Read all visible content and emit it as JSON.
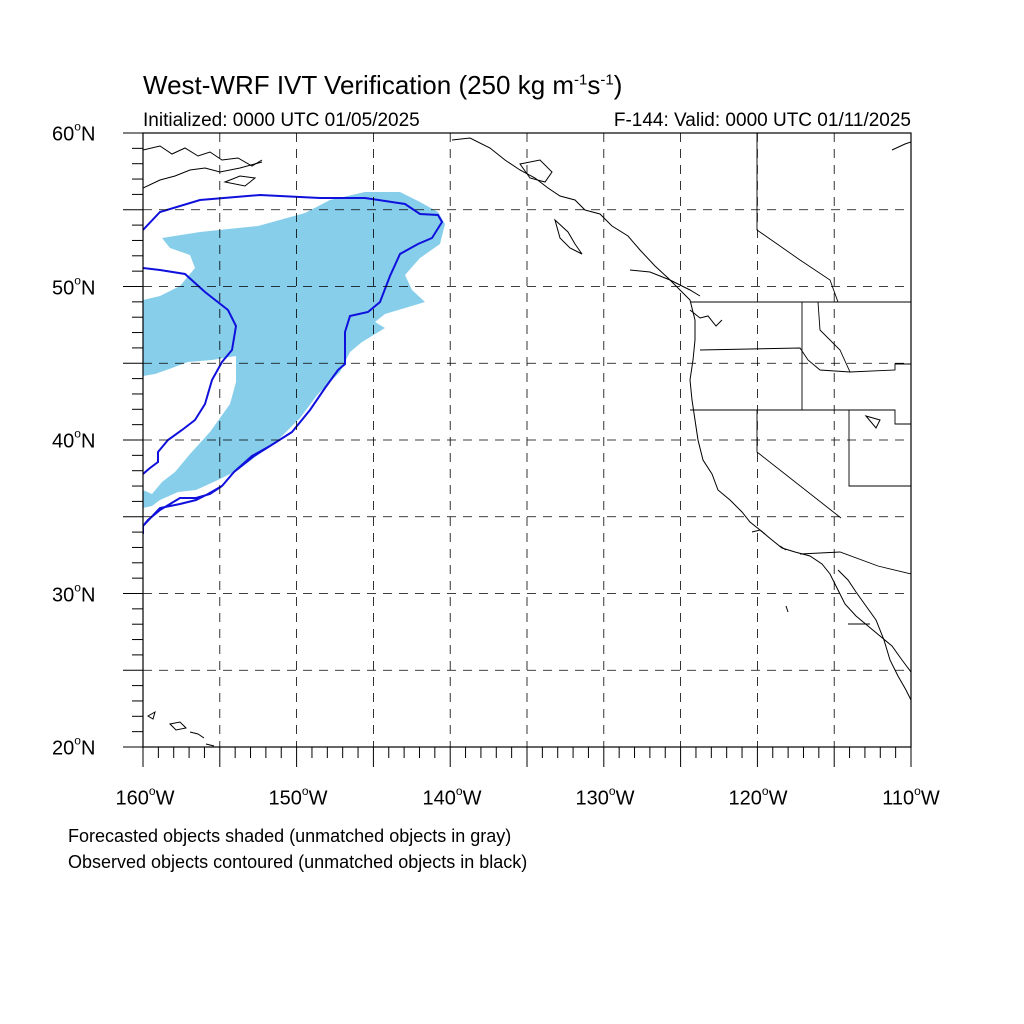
{
  "title": {
    "main": "West-WRF IVT Verification (250 kg m",
    "sup1": "-1",
    "mid": "s",
    "sup2": "-1",
    "end": ")"
  },
  "subtitle_left": "Initialized: 0000 UTC 01/05/2025",
  "subtitle_right": "F-144: Valid: 0000 UTC 01/11/2025",
  "lat_labels": [
    {
      "num": "60",
      "deg": "o",
      "hem": "N"
    },
    {
      "num": "50",
      "deg": "o",
      "hem": "N"
    },
    {
      "num": "40",
      "deg": "o",
      "hem": "N"
    },
    {
      "num": "30",
      "deg": "o",
      "hem": "N"
    },
    {
      "num": "20",
      "deg": "o",
      "hem": "N"
    }
  ],
  "lon_labels": [
    {
      "num": "160",
      "deg": "o",
      "hem": "W"
    },
    {
      "num": "150",
      "deg": "o",
      "hem": "W"
    },
    {
      "num": "140",
      "deg": "o",
      "hem": "W"
    },
    {
      "num": "130",
      "deg": "o",
      "hem": "W"
    },
    {
      "num": "120",
      "deg": "o",
      "hem": "W"
    },
    {
      "num": "110",
      "deg": "o",
      "hem": "W"
    }
  ],
  "caption_line1": "Forecasted objects shaded (unmatched objects in gray)",
  "caption_line2": "Observed objects contoured (unmatched objects in black)",
  "map": {
    "lon_range": [
      -160,
      -110
    ],
    "lat_range": [
      20,
      60
    ],
    "gridline_lons": [
      -155,
      -150,
      -145,
      -140,
      -135,
      -130,
      -125,
      -120,
      -115
    ],
    "gridline_lats": [
      25,
      30,
      35,
      40,
      45,
      50,
      55
    ],
    "forecast_fill_color": "#87ceeb",
    "observed_contour_color": "#1010dd",
    "coast_color": "#000000"
  }
}
